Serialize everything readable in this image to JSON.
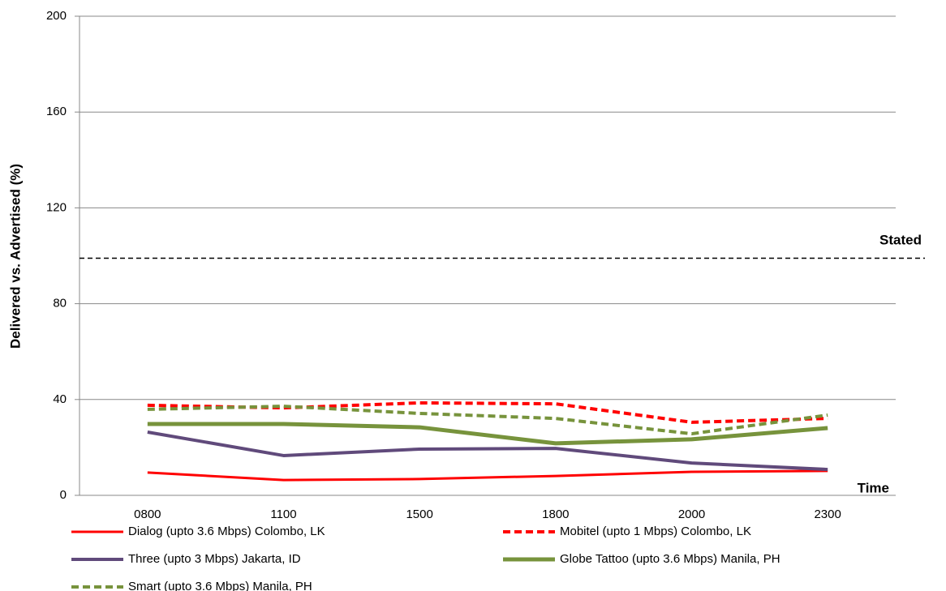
{
  "chart_data": {
    "type": "line",
    "ylabel": "Delivered  vs. Advertised (%)",
    "xlabel": "Time",
    "categories": [
      "0800",
      "1100",
      "1500",
      "1800",
      "2000",
      "2300"
    ],
    "ylim": [
      0,
      200
    ],
    "yticks": [
      0,
      40,
      80,
      120,
      160,
      200
    ],
    "grid": true,
    "reference": {
      "label": "Stated",
      "value": 99
    },
    "series": [
      {
        "name": "Dialog (upto 3.6 Mbps) Colombo, LK",
        "color": "#ff0000",
        "style": "solid",
        "values": [
          9.5,
          6.4,
          6.8,
          8.1,
          9.8,
          10.2
        ]
      },
      {
        "name": "Mobitel (upto 1 Mbps) Colombo, LK",
        "color": "#ff0000",
        "style": "dashed",
        "values": [
          37.6,
          36.5,
          38.6,
          38.2,
          30.5,
          32.1
        ]
      },
      {
        "name": "Three (upto 3 Mbps) Jakarta, ID",
        "color": "#604a7b",
        "style": "solid",
        "values": [
          26.4,
          16.6,
          19.3,
          19.6,
          13.5,
          10.8
        ]
      },
      {
        "name": "Globe Tattoo (upto 3.6 Mbps) Manila, PH",
        "color": "#77933c",
        "style": "solid",
        "values": [
          29.8,
          29.8,
          28.4,
          21.7,
          23.4,
          28.1
        ]
      },
      {
        "name": "Smart (upto 3.6 Mbps) Manila, PH",
        "color": "#77933c",
        "style": "dashed",
        "values": [
          35.9,
          37.2,
          34.2,
          32.1,
          25.7,
          33.5
        ]
      }
    ]
  }
}
